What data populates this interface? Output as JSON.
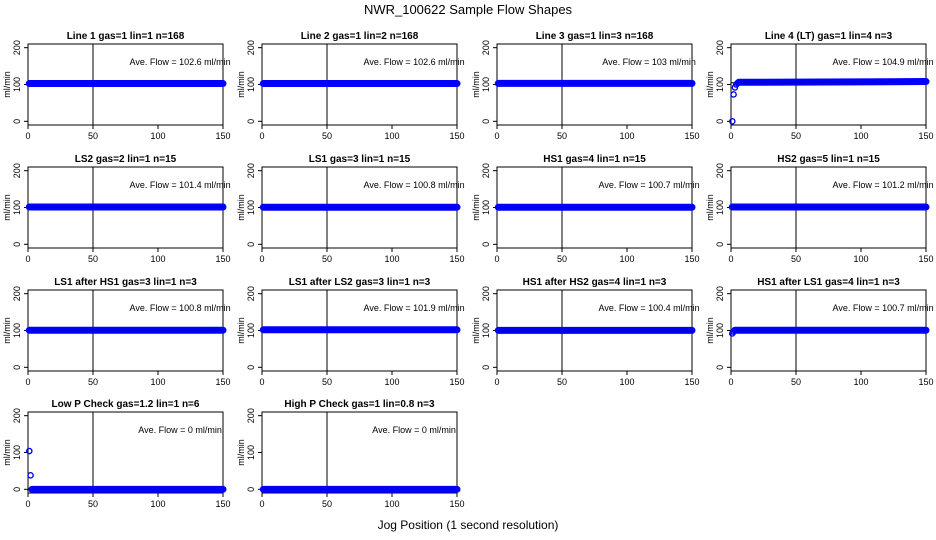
{
  "figure": {
    "title": "NWR_100622  Sample Flow Shapes",
    "xlabel": "Jog Position (1 second resolution)"
  },
  "colors": {
    "points": "#0000ff",
    "lines": "#000000"
  },
  "chart_data": [
    {
      "type": "scatter",
      "title": "Line 1 gas=1 lin=1 n=168",
      "ylabel": "ml/min",
      "annotation": "Ave. Flow =  102.6  ml/min",
      "xlim": [
        0,
        150
      ],
      "ylim": [
        -10,
        210
      ],
      "x_ticks": [
        0,
        50,
        100,
        150
      ],
      "y_ticks": [
        0,
        100,
        200
      ],
      "vline_x": 50,
      "hline_y": 102.6,
      "series": [
        {
          "x": [
            1,
            150
          ],
          "y": [
            102.6,
            102.6
          ]
        }
      ],
      "startup_points": []
    },
    {
      "type": "scatter",
      "title": "Line 2 gas=1 lin=2 n=168",
      "ylabel": "ml/min",
      "annotation": "Ave. Flow =  102.6  ml/min",
      "xlim": [
        0,
        150
      ],
      "ylim": [
        -10,
        210
      ],
      "x_ticks": [
        0,
        50,
        100,
        150
      ],
      "y_ticks": [
        0,
        100,
        200
      ],
      "vline_x": 50,
      "hline_y": 102.6,
      "series": [
        {
          "x": [
            1,
            150
          ],
          "y": [
            102.6,
            102.6
          ]
        }
      ],
      "startup_points": []
    },
    {
      "type": "scatter",
      "title": "Line 3 gas=1 lin=3 n=168",
      "ylabel": "ml/min",
      "annotation": "Ave. Flow =  103  ml/min",
      "xlim": [
        0,
        150
      ],
      "ylim": [
        -10,
        210
      ],
      "x_ticks": [
        0,
        50,
        100,
        150
      ],
      "y_ticks": [
        0,
        100,
        200
      ],
      "vline_x": 50,
      "hline_y": 103,
      "series": [
        {
          "x": [
            1,
            150
          ],
          "y": [
            103,
            103
          ]
        }
      ],
      "startup_points": []
    },
    {
      "type": "scatter",
      "title": "Line 4 (LT) gas=1 lin=4 n=3",
      "ylabel": "ml/min",
      "annotation": "Ave. Flow =  104.9  ml/min",
      "xlim": [
        0,
        150
      ],
      "ylim": [
        -10,
        210
      ],
      "x_ticks": [
        0,
        50,
        100,
        150
      ],
      "y_ticks": [
        0,
        100,
        200
      ],
      "vline_x": 50,
      "hline_y": 104.9,
      "series": [
        {
          "x": [
            6,
            150
          ],
          "y": [
            106,
            108
          ]
        }
      ],
      "startup_points": [
        {
          "x": 1,
          "y": 0
        },
        {
          "x": 2,
          "y": 73
        },
        {
          "x": 3,
          "y": 92
        },
        {
          "x": 4,
          "y": 100
        },
        {
          "x": 5,
          "y": 104
        }
      ]
    },
    {
      "type": "scatter",
      "title": "LS2 gas=2 lin=1 n=15",
      "ylabel": "ml/min",
      "annotation": "Ave. Flow =  101.4  ml/min",
      "xlim": [
        0,
        150
      ],
      "ylim": [
        -10,
        210
      ],
      "x_ticks": [
        0,
        50,
        100,
        150
      ],
      "y_ticks": [
        0,
        100,
        200
      ],
      "vline_x": 50,
      "hline_y": 101.4,
      "series": [
        {
          "x": [
            1,
            150
          ],
          "y": [
            101.4,
            101.4
          ]
        }
      ],
      "startup_points": []
    },
    {
      "type": "scatter",
      "title": "LS1 gas=3 lin=1 n=15",
      "ylabel": "ml/min",
      "annotation": "Ave. Flow =  100.8  ml/min",
      "xlim": [
        0,
        150
      ],
      "ylim": [
        -10,
        210
      ],
      "x_ticks": [
        0,
        50,
        100,
        150
      ],
      "y_ticks": [
        0,
        100,
        200
      ],
      "vline_x": 50,
      "hline_y": 100.8,
      "series": [
        {
          "x": [
            1,
            150
          ],
          "y": [
            100.8,
            100.8
          ]
        }
      ],
      "startup_points": []
    },
    {
      "type": "scatter",
      "title": "HS1 gas=4 lin=1 n=15",
      "ylabel": "ml/min",
      "annotation": "Ave. Flow =  100.7  ml/min",
      "xlim": [
        0,
        150
      ],
      "ylim": [
        -10,
        210
      ],
      "x_ticks": [
        0,
        50,
        100,
        150
      ],
      "y_ticks": [
        0,
        100,
        200
      ],
      "vline_x": 50,
      "hline_y": 100.7,
      "series": [
        {
          "x": [
            1,
            150
          ],
          "y": [
            100.7,
            100.7
          ]
        }
      ],
      "startup_points": []
    },
    {
      "type": "scatter",
      "title": "HS2 gas=5 lin=1 n=15",
      "ylabel": "ml/min",
      "annotation": "Ave. Flow =  101.2  ml/min",
      "xlim": [
        0,
        150
      ],
      "ylim": [
        -10,
        210
      ],
      "x_ticks": [
        0,
        50,
        100,
        150
      ],
      "y_ticks": [
        0,
        100,
        200
      ],
      "vline_x": 50,
      "hline_y": 101.2,
      "series": [
        {
          "x": [
            1,
            150
          ],
          "y": [
            101.2,
            101.2
          ]
        }
      ],
      "startup_points": []
    },
    {
      "type": "scatter",
      "title": "LS1 after HS1 gas=3 lin=1 n=3",
      "ylabel": "ml/min",
      "annotation": "Ave. Flow =  100.8  ml/min",
      "xlim": [
        0,
        150
      ],
      "ylim": [
        -10,
        210
      ],
      "x_ticks": [
        0,
        50,
        100,
        150
      ],
      "y_ticks": [
        0,
        100,
        200
      ],
      "vline_x": 50,
      "hline_y": 100.8,
      "series": [
        {
          "x": [
            1,
            150
          ],
          "y": [
            100.8,
            100.8
          ]
        }
      ],
      "startup_points": []
    },
    {
      "type": "scatter",
      "title": "LS1 after LS2 gas=3 lin=1 n=3",
      "ylabel": "ml/min",
      "annotation": "Ave. Flow =  101.9  ml/min",
      "xlim": [
        0,
        150
      ],
      "ylim": [
        -10,
        210
      ],
      "x_ticks": [
        0,
        50,
        100,
        150
      ],
      "y_ticks": [
        0,
        100,
        200
      ],
      "vline_x": 50,
      "hline_y": 101.9,
      "series": [
        {
          "x": [
            1,
            150
          ],
          "y": [
            101.9,
            101.9
          ]
        }
      ],
      "startup_points": []
    },
    {
      "type": "scatter",
      "title": "HS1 after HS2 gas=4 lin=1 n=3",
      "ylabel": "ml/min",
      "annotation": "Ave. Flow =  100.4  ml/min",
      "xlim": [
        0,
        150
      ],
      "ylim": [
        -10,
        210
      ],
      "x_ticks": [
        0,
        50,
        100,
        150
      ],
      "y_ticks": [
        0,
        100,
        200
      ],
      "vline_x": 50,
      "hline_y": 100.4,
      "series": [
        {
          "x": [
            1,
            150
          ],
          "y": [
            100.4,
            100.4
          ]
        }
      ],
      "startup_points": []
    },
    {
      "type": "scatter",
      "title": "HS1 after LS1 gas=4 lin=1 n=3",
      "ylabel": "ml/min",
      "annotation": "Ave. Flow =  100.7  ml/min",
      "xlim": [
        0,
        150
      ],
      "ylim": [
        -10,
        210
      ],
      "x_ticks": [
        0,
        50,
        100,
        150
      ],
      "y_ticks": [
        0,
        100,
        200
      ],
      "vline_x": 50,
      "hline_y": 100.7,
      "series": [
        {
          "x": [
            3,
            150
          ],
          "y": [
            100.7,
            100.7
          ]
        }
      ],
      "startup_points": [
        {
          "x": 1,
          "y": 92
        },
        {
          "x": 2,
          "y": 97
        }
      ]
    },
    {
      "type": "scatter",
      "title": "Low P Check gas=1.2 lin=1 n=6",
      "ylabel": "ml/min",
      "annotation": "Ave. Flow =  0  ml/min",
      "xlim": [
        0,
        150
      ],
      "ylim": [
        -10,
        210
      ],
      "x_ticks": [
        0,
        50,
        100,
        150
      ],
      "y_ticks": [
        0,
        100,
        200
      ],
      "vline_x": 50,
      "hline_y": 0,
      "series": [
        {
          "x": [
            3,
            150
          ],
          "y": [
            0,
            0
          ]
        }
      ],
      "startup_points": [
        {
          "x": 1,
          "y": 104
        },
        {
          "x": 2,
          "y": 38
        }
      ]
    },
    {
      "type": "scatter",
      "title": "High P Check gas=1 lin=0.8 n=3",
      "ylabel": "ml/min",
      "annotation": "Ave. Flow =  0  ml/min",
      "xlim": [
        0,
        150
      ],
      "ylim": [
        -10,
        210
      ],
      "x_ticks": [
        0,
        50,
        100,
        150
      ],
      "y_ticks": [
        0,
        100,
        200
      ],
      "vline_x": 50,
      "hline_y": 0,
      "series": [
        {
          "x": [
            1,
            150
          ],
          "y": [
            0,
            0
          ]
        }
      ],
      "startup_points": []
    }
  ]
}
